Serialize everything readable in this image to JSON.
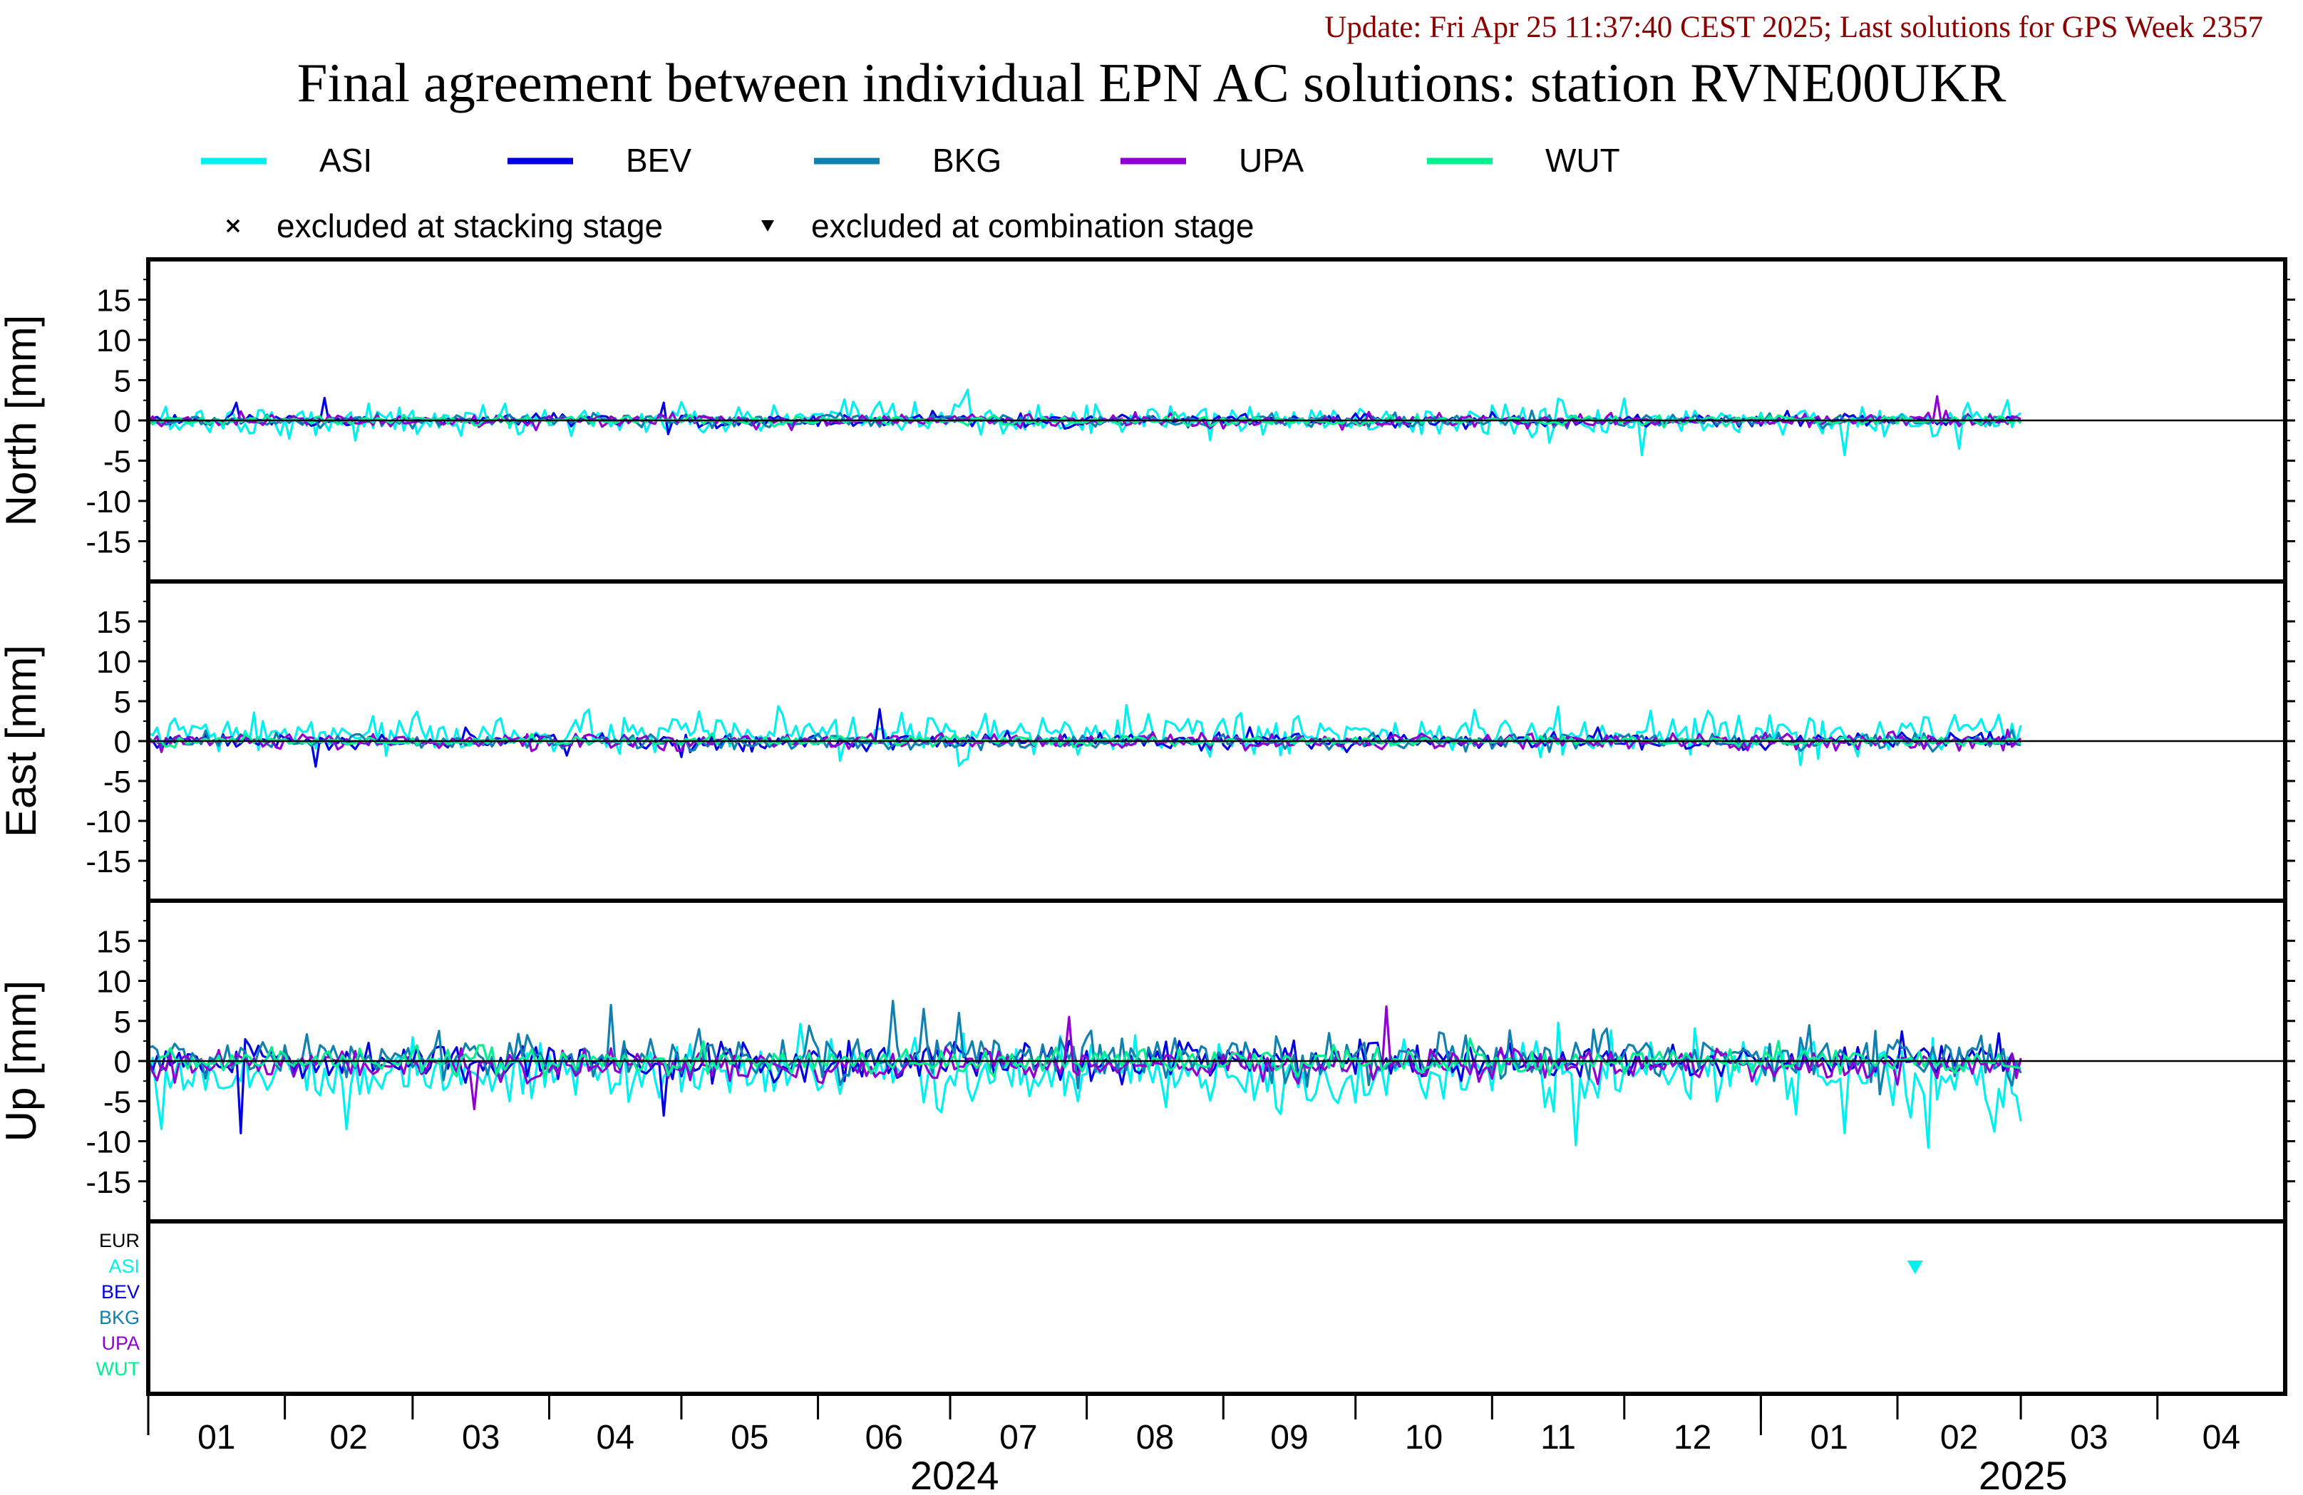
{
  "header": {
    "update_text": "Update: Fri Apr 25 11:37:40 CEST 2025; Last solutions for GPS Week 2357",
    "title": "Final agreement between individual EPN AC solutions: station RVNE00UKR"
  },
  "legend": {
    "series": [
      {
        "name": "ASI",
        "color": "#00f0f0"
      },
      {
        "name": "BEV",
        "color": "#0000e0"
      },
      {
        "name": "BKG",
        "color": "#1080b0"
      },
      {
        "name": "UPA",
        "color": "#9000d0"
      },
      {
        "name": "WUT",
        "color": "#00f090"
      }
    ],
    "markers": [
      {
        "symbol": "cross",
        "label": "excluded at stacking stage"
      },
      {
        "symbol": "triangle-down",
        "label": "excluded at combination stage"
      }
    ]
  },
  "chart_data": {
    "type": "line",
    "x_start": "2024-01-01",
    "x_end": "2025-04-30",
    "data_end": "2025-03-01",
    "ylim": [
      -20,
      20
    ],
    "yticks": [
      15,
      10,
      5,
      0,
      -5,
      -10,
      -15
    ],
    "panels": [
      {
        "ylabel": "North [mm]",
        "series": [
          {
            "name": "ASI",
            "noise": 1.0,
            "spikes": [
              [
                "2024-07-05",
                3.8
              ],
              [
                "2024-12-05",
                -4.3
              ],
              [
                "2025-01-20",
                -4.3
              ],
              [
                "2025-02-15",
                -3.5
              ],
              [
                "2025-02-26",
                2.5
              ]
            ]
          },
          {
            "name": "BEV",
            "noise": 0.4,
            "spikes": [
              [
                "2024-01-21",
                2.2
              ],
              [
                "2024-02-10",
                2.8
              ],
              [
                "2024-04-27",
                2.2
              ],
              [
                "2024-04-28",
                -1.7
              ]
            ]
          },
          {
            "name": "BKG",
            "noise": 0.4,
            "spikes": []
          },
          {
            "name": "UPA",
            "noise": 0.4,
            "spikes": [
              [
                "2025-02-10",
                3.0
              ]
            ]
          },
          {
            "name": "WUT",
            "noise": 0.3,
            "spikes": []
          }
        ]
      },
      {
        "ylabel": "East [mm]",
        "series": [
          {
            "name": "ASI",
            "noise": 1.2,
            "offset": 0.8,
            "spikes": [
              [
                "2024-08-10",
                4.5
              ],
              [
                "2024-12-20",
                3.8
              ],
              [
                "2025-01-10",
                -3.0
              ]
            ]
          },
          {
            "name": "BEV",
            "noise": 0.5,
            "spikes": [
              [
                "2024-02-08",
                -3.2
              ],
              [
                "2024-06-15",
                4.0
              ],
              [
                "2024-04-05",
                -1.8
              ],
              [
                "2024-05-01",
                -2.0
              ]
            ]
          },
          {
            "name": "BKG",
            "noise": 0.5,
            "spikes": []
          },
          {
            "name": "UPA",
            "noise": 0.5,
            "spikes": []
          },
          {
            "name": "WUT",
            "noise": 0.3,
            "spikes": []
          }
        ]
      },
      {
        "ylabel": "Up [mm]",
        "series": [
          {
            "name": "ASI",
            "noise": 2.0,
            "offset": -1.5,
            "spikes": [
              [
                "2024-02-15",
                -8.5
              ],
              [
                "2024-11-20",
                -10.5
              ],
              [
                "2025-01-20",
                -9.0
              ],
              [
                "2025-02-08",
                -10.8
              ],
              [
                "2025-02-23",
                -8.8
              ],
              [
                "2025-03-01",
                -7.5
              ]
            ]
          },
          {
            "name": "BEV",
            "noise": 1.2,
            "spikes": [
              [
                "2024-01-22",
                -9.0
              ],
              [
                "2024-04-27",
                -6.8
              ],
              [
                "2024-10-25",
                -2.5
              ]
            ]
          },
          {
            "name": "BKG",
            "noise": 1.5,
            "offset": 0.5,
            "spikes": [
              [
                "2024-04-15",
                7.0
              ],
              [
                "2024-06-18",
                7.5
              ],
              [
                "2024-06-25",
                6.5
              ],
              [
                "2024-07-03",
                6.0
              ],
              [
                "2024-05-05",
                4.0
              ]
            ]
          },
          {
            "name": "UPA",
            "noise": 1.0,
            "offset": -0.5,
            "spikes": [
              [
                "2024-07-28",
                5.5
              ],
              [
                "2024-10-08",
                6.8
              ],
              [
                "2024-03-15",
                -6.0
              ]
            ]
          },
          {
            "name": "WUT",
            "noise": 0.8,
            "spikes": [
              [
                "2025-01-05",
                2.5
              ]
            ]
          }
        ]
      }
    ],
    "exclusion_panel": {
      "rows": [
        {
          "label": "EUR",
          "color": "#000000"
        },
        {
          "label": "ASI",
          "color": "#00f0f0"
        },
        {
          "label": "BEV",
          "color": "#0000e0"
        },
        {
          "label": "BKG",
          "color": "#1080b0"
        },
        {
          "label": "UPA",
          "color": "#9000d0"
        },
        {
          "label": "WUT",
          "color": "#00f090"
        }
      ],
      "markers": [
        {
          "date": "2025-02-05",
          "row": "ASI",
          "symbol": "triangle-down",
          "color": "#00f0f0"
        }
      ]
    },
    "x_months": [
      {
        "label": "01",
        "date": "2024-01-01"
      },
      {
        "label": "02",
        "date": "2024-02-01"
      },
      {
        "label": "03",
        "date": "2024-03-01"
      },
      {
        "label": "04",
        "date": "2024-04-01"
      },
      {
        "label": "05",
        "date": "2024-05-01"
      },
      {
        "label": "06",
        "date": "2024-06-01"
      },
      {
        "label": "07",
        "date": "2024-07-01"
      },
      {
        "label": "08",
        "date": "2024-08-01"
      },
      {
        "label": "09",
        "date": "2024-09-01"
      },
      {
        "label": "10",
        "date": "2024-10-01"
      },
      {
        "label": "11",
        "date": "2024-11-01"
      },
      {
        "label": "12",
        "date": "2024-12-01"
      },
      {
        "label": "01",
        "date": "2025-01-01"
      },
      {
        "label": "02",
        "date": "2025-02-01"
      },
      {
        "label": "03",
        "date": "2025-03-01"
      },
      {
        "label": "04",
        "date": "2025-04-01"
      }
    ],
    "x_years": [
      {
        "label": "2024",
        "start": "2024-01-01",
        "end": "2025-01-01"
      },
      {
        "label": "2025",
        "start": "2025-01-01",
        "end": "2025-04-30"
      }
    ]
  }
}
